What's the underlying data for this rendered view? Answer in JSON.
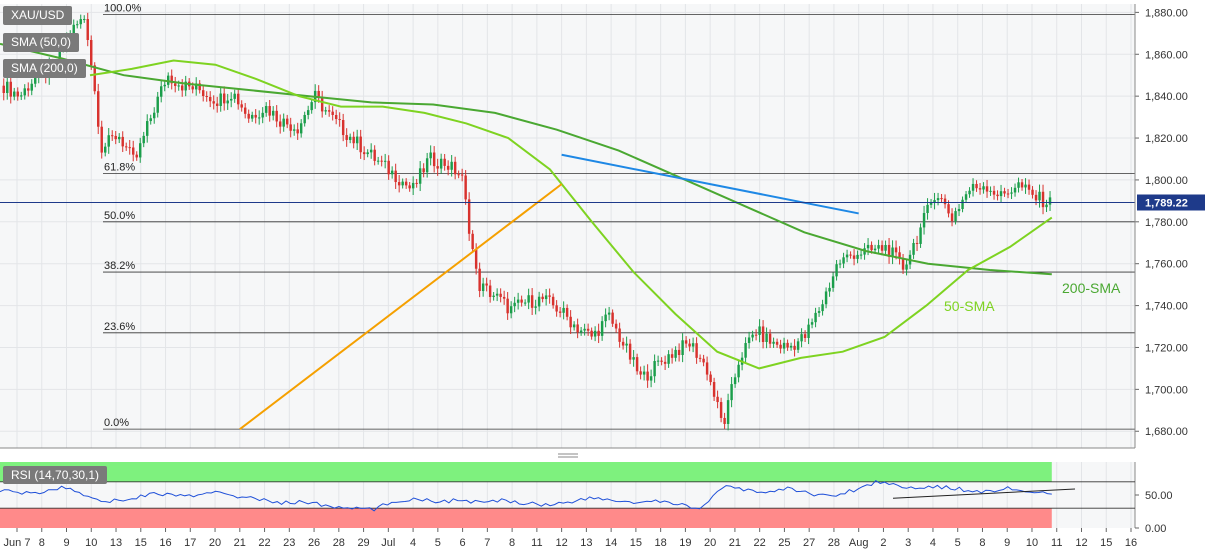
{
  "chart_data": [
    {
      "type": "candlestick",
      "symbol": "XAU/USD",
      "indicators": [
        "SMA (50,0)",
        "SMA (200,0)"
      ],
      "y_ticks": [
        "1,680.00",
        "1,700.00",
        "1,720.00",
        "1,740.00",
        "1,760.00",
        "1,780.00",
        "1,800.00",
        "1,820.00",
        "1,840.00",
        "1,860.00",
        "1,880.00"
      ],
      "ylim": [
        1672,
        1884
      ],
      "last_price": "1,789.22",
      "last_price_value": 1789.22,
      "fib_levels": [
        {
          "label": "100.0%",
          "value": 1879
        },
        {
          "label": "61.8%",
          "value": 1803
        },
        {
          "label": "50.0%",
          "value": 1780
        },
        {
          "label": "38.2%",
          "value": 1756
        },
        {
          "label": "23.6%",
          "value": 1727
        },
        {
          "label": "0.0%",
          "value": 1681
        }
      ],
      "annotations": [
        {
          "label": "200-SMA",
          "color": "#4aa832"
        },
        {
          "label": "50-SMA",
          "color": "#7ed321"
        }
      ],
      "x_ticks": [
        "Jun 7",
        "8",
        "9",
        "10",
        "13",
        "15",
        "16",
        "17",
        "20",
        "21",
        "22",
        "23",
        "26",
        "28",
        "29",
        "Jul",
        "4",
        "5",
        "6",
        "7",
        "8",
        "11",
        "12",
        "13",
        "14",
        "15",
        "18",
        "19",
        "20",
        "21",
        "22",
        "25",
        "27",
        "28",
        "Aug",
        "2",
        "3",
        "4",
        "5",
        "8",
        "9",
        "10",
        "11",
        "12",
        "15",
        "16"
      ],
      "price_path": [
        1845,
        1840,
        1850,
        1852,
        1870,
        1878,
        1815,
        1822,
        1808,
        1830,
        1850,
        1845,
        1843,
        1838,
        1842,
        1830,
        1835,
        1828,
        1825,
        1840,
        1830,
        1822,
        1815,
        1808,
        1802,
        1795,
        1810,
        1808,
        1802,
        1750,
        1745,
        1738,
        1742,
        1743,
        1738,
        1730,
        1725,
        1735,
        1720,
        1705,
        1712,
        1718,
        1722,
        1710,
        1682,
        1715,
        1728,
        1722,
        1720,
        1725,
        1740,
        1760,
        1765,
        1766,
        1768,
        1758,
        1775,
        1795,
        1782,
        1795,
        1798,
        1792,
        1798,
        1792,
        1789
      ],
      "sma50_path": [
        1850,
        1853,
        1857,
        1855,
        1848,
        1840,
        1835,
        1835,
        1832,
        1827,
        1820,
        1805,
        1780,
        1756,
        1736,
        1718,
        1710,
        1715,
        1718,
        1725,
        1740,
        1757,
        1768,
        1782
      ],
      "sma200_path": [
        1865,
        1858,
        1850,
        1846,
        1843,
        1840,
        1837,
        1836,
        1832,
        1824,
        1814,
        1801,
        1788,
        1775,
        1766,
        1760,
        1757,
        1755
      ],
      "trendlines": [
        {
          "color": "#f5a000",
          "from": {
            "x": "21",
            "y": 1681
          },
          "to": {
            "x": "12",
            "y": 1798
          }
        },
        {
          "color": "#1e88e5",
          "from": {
            "x": "Aug",
            "y": 1784
          },
          "to": {
            "x": "12",
            "y": 1812
          }
        }
      ]
    },
    {
      "type": "line",
      "indicator": "RSI (14,70,30,1)",
      "y_ticks": [
        "0.00",
        "50.00"
      ],
      "ylim": [
        0,
        100
      ],
      "overbought": 70,
      "oversold": 30,
      "colors": {
        "rsi_line": "#1e4fd8",
        "overbought_zone": "#7ef17e",
        "oversold_zone": "#ff8a8a"
      },
      "rsi_path": [
        58,
        52,
        55,
        62,
        48,
        40,
        45,
        52,
        50,
        48,
        55,
        47,
        42,
        38,
        40,
        32,
        30,
        28,
        40,
        45,
        40,
        42,
        38,
        42,
        38,
        35,
        40,
        45,
        42,
        38,
        40,
        36,
        30,
        62,
        58,
        54,
        60,
        52,
        48,
        58,
        70,
        65,
        60,
        62,
        58,
        55,
        60,
        55,
        50
      ]
    }
  ]
}
